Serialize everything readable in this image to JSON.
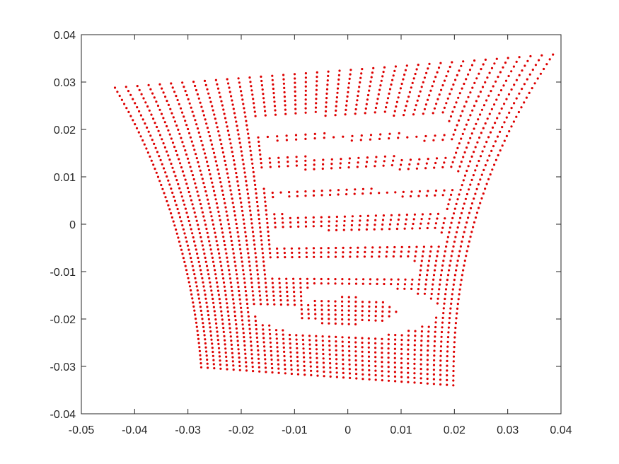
{
  "chart_data": {
    "type": "scatter",
    "title": "",
    "xlabel": "",
    "ylabel": "",
    "xlim": [
      -0.05,
      0.04
    ],
    "ylim": [
      -0.04,
      0.04
    ],
    "grid": false,
    "marker_color": "#dd0000",
    "x_ticks": [
      -0.05,
      -0.04,
      -0.03,
      -0.02,
      -0.01,
      0,
      0.01,
      0.02,
      0.03,
      0.04
    ],
    "x_tick_labels": [
      "-0.05",
      "-0.04",
      "-0.03",
      "-0.02",
      "-0.01",
      "0",
      "0.01",
      "0.02",
      "0.03",
      "0.04"
    ],
    "y_ticks": [
      -0.04,
      -0.03,
      -0.02,
      -0.01,
      0,
      0.01,
      0.02,
      0.03,
      0.04
    ],
    "y_tick_labels": [
      "-0.04",
      "-0.03",
      "-0.02",
      "-0.01",
      "0",
      "0.01",
      "0.02",
      "0.03",
      "0.04"
    ],
    "grid_outline": {
      "top_left": [
        -0.0437,
        0.0288
      ],
      "top_right": [
        0.0385,
        0.0358
      ],
      "bottom_left": [
        -0.0275,
        -0.0302
      ],
      "bottom_right": [
        0.0198,
        -0.034
      ],
      "columns": 40,
      "rows_per_column": 70
    },
    "holes": [
      {
        "shape": "band",
        "x_range": [
          -0.0175,
          0.019
        ],
        "y_center": 0.021,
        "half_height": 0.0018
      },
      {
        "shape": "band",
        "x_range": [
          -0.016,
          0.0195
        ],
        "y_center": 0.016,
        "half_height": 0.0016
      },
      {
        "shape": "band",
        "x_range": [
          -0.0165,
          0.0205
        ],
        "y_center": 0.0095,
        "half_height": 0.002
      },
      {
        "shape": "band",
        "x_range": [
          -0.014,
          0.0185
        ],
        "y_center": 0.004,
        "half_height": 0.0018
      },
      {
        "shape": "band",
        "x_range": [
          -0.014,
          0.0175
        ],
        "y_center": -0.003,
        "half_height": 0.0017
      },
      {
        "shape": "band",
        "x_range": [
          -0.0145,
          0.0125
        ],
        "y_center": -0.0095,
        "half_height": 0.0018
      },
      {
        "shape": "ring",
        "center": [
          -0.0003,
          -0.0183
        ],
        "radius_x": 0.0135,
        "radius_y": 0.0042,
        "thickness": 0.0024
      }
    ]
  }
}
